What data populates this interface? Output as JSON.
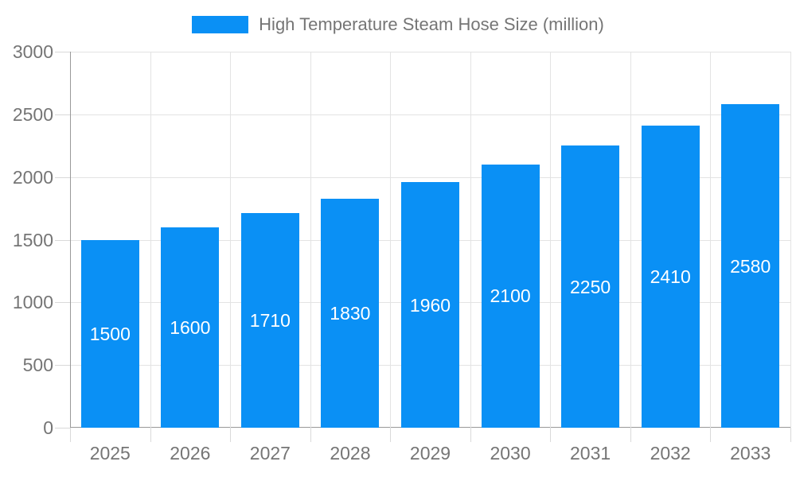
{
  "legend": {
    "label": "High Temperature Steam Hose Size (million)"
  },
  "chart_data": {
    "type": "bar",
    "title": "",
    "xlabel": "",
    "ylabel": "",
    "categories": [
      "2025",
      "2026",
      "2027",
      "2028",
      "2029",
      "2030",
      "2031",
      "2032",
      "2033"
    ],
    "series": [
      {
        "name": "High Temperature Steam Hose Size (million)",
        "values": [
          1500,
          1600,
          1710,
          1830,
          1960,
          2100,
          2250,
          2410,
          2580
        ]
      }
    ],
    "ylim": [
      0,
      3000
    ],
    "yticks": [
      0,
      500,
      1000,
      1500,
      2000,
      2500,
      3000
    ],
    "grid": true,
    "legend_position": "top-center",
    "value_labels": "inside-center",
    "colors": {
      "bar": "#0A90F5",
      "bar_value_text": "#ffffff",
      "grid_line": "#e3e3e3",
      "tick_line": "#d9d9d9",
      "axis_line": "#999999",
      "axis_text": "#757575",
      "legend_text": "#757575",
      "background": "#ffffff"
    }
  }
}
